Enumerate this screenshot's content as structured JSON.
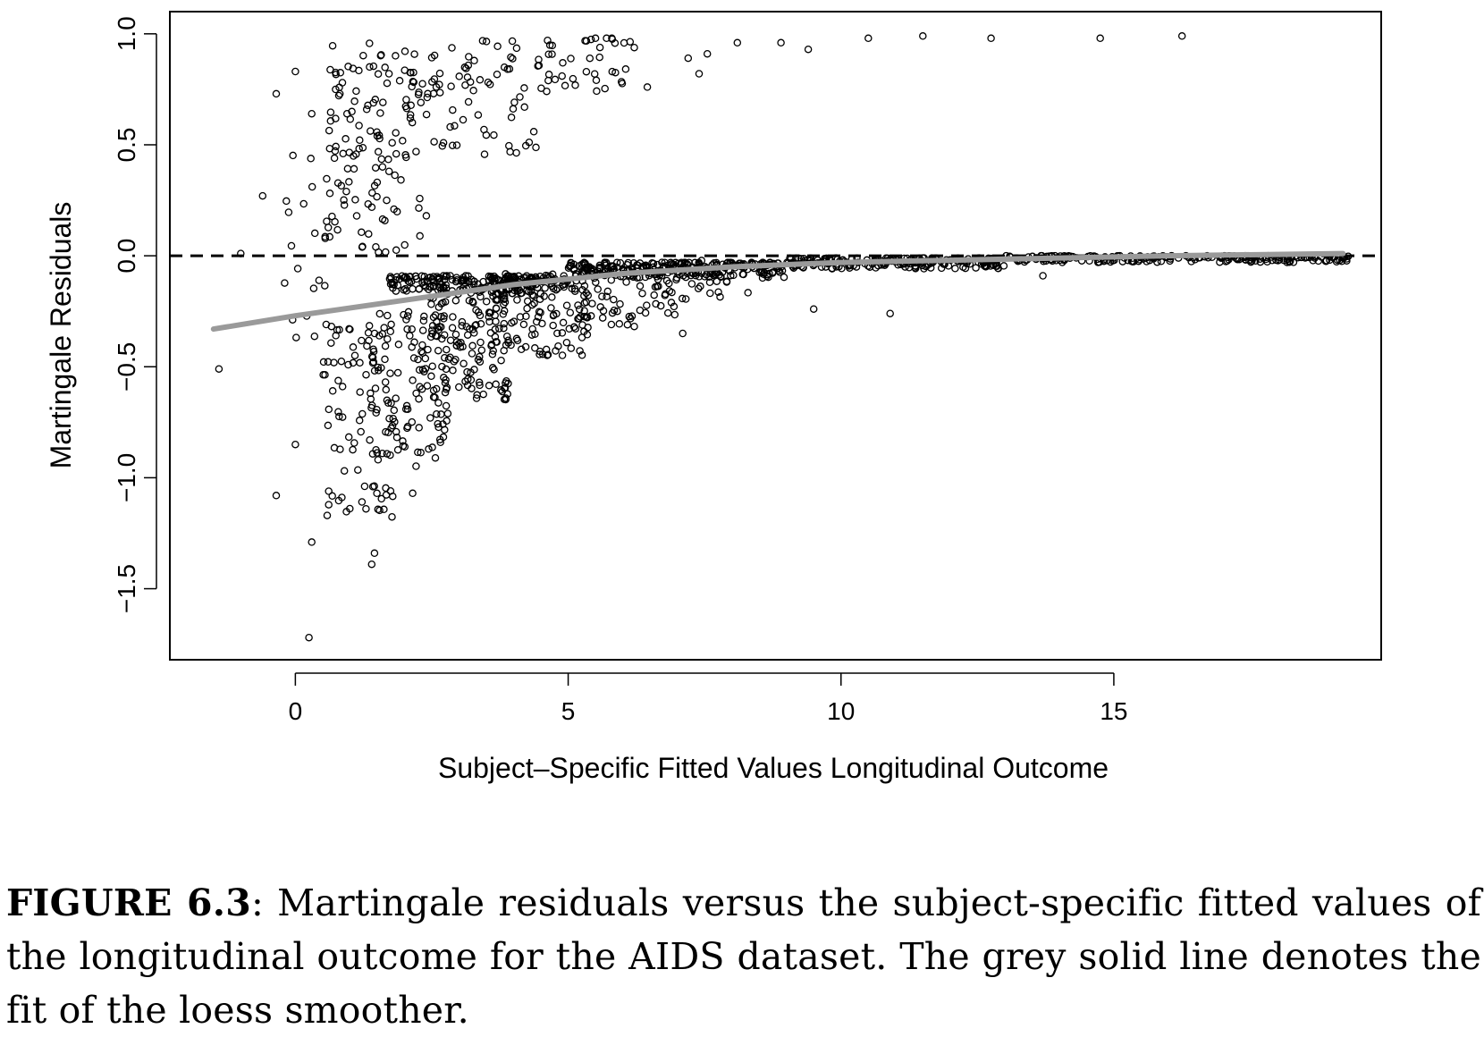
{
  "chart_data": {
    "type": "scatter",
    "title": "",
    "xlabel": "Subject–Specific Fitted Values Longitudinal Outcome",
    "ylabel": "Martingale Residuals",
    "xlim": [
      -2.3,
      19.9
    ],
    "ylim": [
      -1.82,
      1.1
    ],
    "xticks": [
      0,
      5,
      10,
      15
    ],
    "xtick_labels": [
      "0",
      "5",
      "10",
      "15"
    ],
    "yticks": [
      -1.5,
      -1.0,
      -0.5,
      0.0,
      0.5,
      1.0
    ],
    "ytick_labels": [
      "−1.5",
      "−1.0",
      "−0.5",
      "0.0",
      "0.5",
      "1.0"
    ],
    "grid": false,
    "reference_line": {
      "y": 0.0,
      "style": "dashed",
      "color": "#000000"
    },
    "smoother": {
      "name": "loess smoother",
      "color": "#9a9a9a",
      "x": [
        -1.5,
        0,
        2,
        4,
        6,
        8,
        10,
        12,
        14,
        16,
        19.2
      ],
      "y": [
        -0.33,
        -0.27,
        -0.2,
        -0.13,
        -0.08,
        -0.05,
        -0.03,
        -0.02,
        -0.01,
        0.0,
        0.01
      ]
    },
    "notable_points": [
      {
        "x": -1.4,
        "y": -0.51
      },
      {
        "x": -1.0,
        "y": 0.01
      },
      {
        "x": -0.6,
        "y": 0.27
      },
      {
        "x": -0.35,
        "y": 0.73
      },
      {
        "x": -0.35,
        "y": -1.08
      },
      {
        "x": 0.0,
        "y": 0.83
      },
      {
        "x": 0.0,
        "y": -0.85
      },
      {
        "x": 0.25,
        "y": -1.72
      },
      {
        "x": 0.3,
        "y": 0.64
      },
      {
        "x": 0.3,
        "y": -1.29
      },
      {
        "x": 1.4,
        "y": -1.39
      },
      {
        "x": 1.45,
        "y": -1.34
      },
      {
        "x": 2.15,
        "y": -1.07
      },
      {
        "x": 2.4,
        "y": 0.18
      },
      {
        "x": 4.2,
        "y": 0.67
      },
      {
        "x": 5.5,
        "y": 0.98
      },
      {
        "x": 5.8,
        "y": 0.98
      },
      {
        "x": 6.45,
        "y": 0.76
      },
      {
        "x": 7.1,
        "y": -0.35
      },
      {
        "x": 7.2,
        "y": 0.89
      },
      {
        "x": 7.4,
        "y": 0.82
      },
      {
        "x": 7.55,
        "y": 0.91
      },
      {
        "x": 8.1,
        "y": 0.96
      },
      {
        "x": 8.9,
        "y": 0.96
      },
      {
        "x": 9.4,
        "y": 0.93
      },
      {
        "x": 9.5,
        "y": -0.24
      },
      {
        "x": 10.5,
        "y": 0.98
      },
      {
        "x": 10.9,
        "y": -0.26
      },
      {
        "x": 11.5,
        "y": 0.99
      },
      {
        "x": 12.75,
        "y": 0.98
      },
      {
        "x": 13.7,
        "y": -0.09
      },
      {
        "x": 14.75,
        "y": 0.98
      },
      {
        "x": 16.25,
        "y": 0.99
      },
      {
        "x": 19.2,
        "y": -0.01
      }
    ],
    "clusters": [
      {
        "x": [
          -0.3,
          0.6
        ],
        "y": [
          -0.4,
          0.5
        ],
        "n": 22
      },
      {
        "x": [
          0.6,
          2.3
        ],
        "y": [
          0.0,
          0.96
        ],
        "n": 130
      },
      {
        "x": [
          2.3,
          4.5
        ],
        "y": [
          0.45,
          0.97
        ],
        "n": 70
      },
      {
        "x": [
          4.5,
          6.3
        ],
        "y": [
          0.74,
          0.98
        ],
        "n": 38
      },
      {
        "x": [
          0.5,
          1.8
        ],
        "y": [
          -1.18,
          -0.3
        ],
        "n": 90
      },
      {
        "x": [
          1.3,
          2.8
        ],
        "y": [
          -0.95,
          -0.25
        ],
        "n": 100
      },
      {
        "x": [
          2.3,
          3.9
        ],
        "y": [
          -0.65,
          -0.15
        ],
        "n": 130
      },
      {
        "x": [
          3.5,
          5.4
        ],
        "y": [
          -0.45,
          -0.08
        ],
        "n": 120
      },
      {
        "x": [
          5.0,
          7.0
        ],
        "y": [
          -0.32,
          -0.04
        ],
        "n": 80
      },
      {
        "x": [
          6.5,
          8.3
        ],
        "y": [
          -0.2,
          -0.02
        ],
        "n": 40
      }
    ],
    "bands": [
      {
        "x": [
          1.7,
          5.0
        ],
        "y_top": -0.09,
        "y_bottom": -0.16,
        "n": 200
      },
      {
        "x": [
          5.0,
          9.0
        ],
        "y_top": -0.03,
        "y_bottom": -0.1,
        "n": 220
      },
      {
        "x": [
          9.0,
          13.0
        ],
        "y_top": -0.01,
        "y_bottom": -0.06,
        "n": 200
      },
      {
        "x": [
          13.0,
          19.3
        ],
        "y_top": 0.0,
        "y_bottom": -0.03,
        "n": 220
      }
    ]
  },
  "caption": {
    "label": "FIGURE 6.3",
    "text": ": Martingale residuals versus the subject-specific fitted values of the longitudinal outcome for the AIDS dataset. The grey solid line denotes the fit of the loess smoother."
  }
}
